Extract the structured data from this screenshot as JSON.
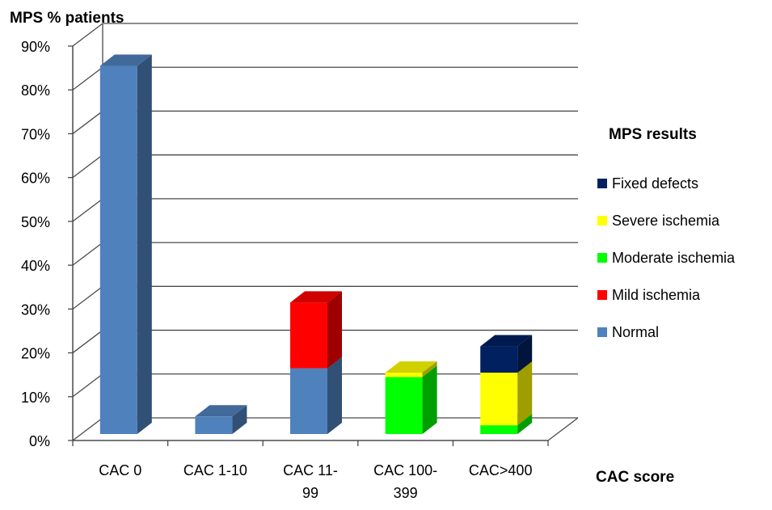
{
  "chart_data": {
    "type": "bar",
    "stacked": true,
    "three_d": true,
    "ylabel": "MPS % patients",
    "xlabel": "CAC score",
    "ylim": [
      0,
      90
    ],
    "yticks": [
      "0%",
      "10%",
      "20%",
      "30%",
      "40%",
      "50%",
      "60%",
      "70%",
      "80%",
      "90%"
    ],
    "categories": [
      [
        "CAC 0"
      ],
      [
        "CAC 1-10"
      ],
      [
        "CAC 11-",
        "99"
      ],
      [
        "CAC 100-",
        "399"
      ],
      [
        "CAC>400"
      ]
    ],
    "legend_title": "MPS results",
    "legend_position": "right",
    "grid": true,
    "series": [
      {
        "name": "Normal",
        "color": "#4f81bd",
        "values": [
          84,
          4,
          15,
          0,
          0
        ]
      },
      {
        "name": "Mild ischemia",
        "color": "#ff0000",
        "values": [
          0,
          0,
          15,
          0,
          0
        ]
      },
      {
        "name": "Moderate ischemia",
        "color": "#00ff00",
        "values": [
          0,
          0,
          0,
          13,
          2
        ]
      },
      {
        "name": "Severe ischemia",
        "color": "#ffff00",
        "values": [
          0,
          0,
          0,
          1,
          12
        ]
      },
      {
        "name": "Fixed defects",
        "color": "#002060",
        "values": [
          0,
          0,
          0,
          0,
          6
        ]
      }
    ]
  }
}
